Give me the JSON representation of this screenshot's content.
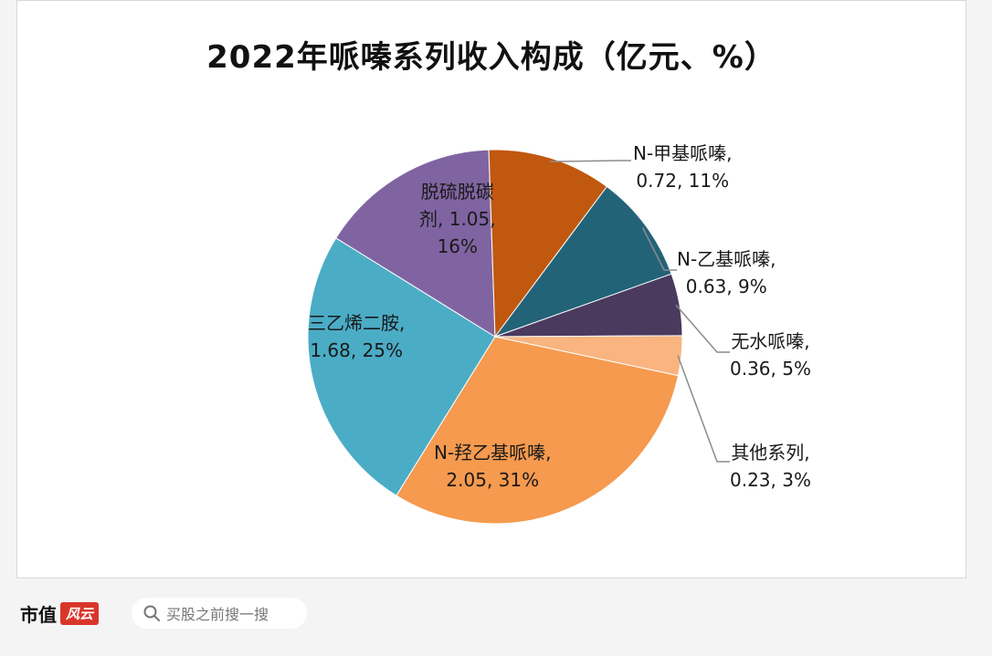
{
  "chart_data": {
    "type": "pie",
    "title": "2022年哌嗪系列收入构成（亿元、%）",
    "slices": [
      {
        "name": "N-羟乙基哌嗪",
        "value": 2.05,
        "percent": "31%",
        "color": "#f59a4e"
      },
      {
        "name": "三乙烯二胺",
        "value": 1.68,
        "percent": "25%",
        "color": "#4bacc6"
      },
      {
        "name": "脱硫脱碳剂",
        "value": 1.05,
        "percent": "16%",
        "color": "#8064a2"
      },
      {
        "name": "N-甲基哌嗪",
        "value": 0.72,
        "percent": "11%",
        "color": "#c0580f"
      },
      {
        "name": "N-乙基哌嗪",
        "value": 0.63,
        "percent": "9%",
        "color": "#236378"
      },
      {
        "name": "无水哌嗪",
        "value": 0.36,
        "percent": "5%",
        "color": "#4a3a5e"
      },
      {
        "name": "其他系列",
        "value": 0.23,
        "percent": "3%",
        "color": "#f9b47f"
      }
    ]
  },
  "labels": [
    {
      "line1": "N-羟乙基哌嗪,",
      "line2": "2.05, 31%"
    },
    {
      "line1": "三乙烯二胺,",
      "line2": "1.68, 25%"
    },
    {
      "line1": "脱硫脱碳",
      "line2": "剂, 1.05,",
      "line3": "16%"
    },
    {
      "line1": "N-甲基哌嗪,",
      "line2": "0.72, 11%"
    },
    {
      "line1": "N-乙基哌嗪,",
      "line2": "0.63, 9%"
    },
    {
      "line1": "无水哌嗪,",
      "line2": "0.36, 5%"
    },
    {
      "line1": "其他系列,",
      "line2": "0.23, 3%"
    }
  ],
  "footer": {
    "brand_text": "市值",
    "brand_badge": "风云",
    "search_text": "买股之前搜一搜"
  }
}
